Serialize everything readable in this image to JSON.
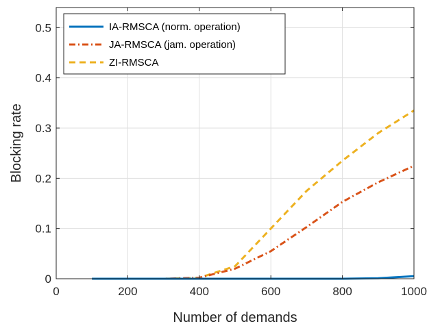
{
  "chart_data": {
    "type": "line",
    "title": "",
    "xlabel": "Number of demands",
    "ylabel": "Blocking rate",
    "xlim": [
      0,
      1000
    ],
    "ylim": [
      0,
      0.54
    ],
    "xticks": [
      0,
      200,
      400,
      600,
      800,
      1000
    ],
    "yticks": [
      0,
      0.1,
      0.2,
      0.3,
      0.4,
      0.5
    ],
    "xtick_labels": [
      "0",
      "200",
      "400",
      "600",
      "800",
      "1000"
    ],
    "ytick_labels": [
      "0",
      "0.1",
      "0.2",
      "0.3",
      "0.4",
      "0.5"
    ],
    "grid": true,
    "legend_position": "top-left",
    "x": [
      100,
      200,
      300,
      400,
      500,
      600,
      700,
      800,
      900,
      1000
    ],
    "series": [
      {
        "name": "IA-RMSCA (norm. operation)",
        "color": "#0072BD",
        "dash": "solid",
        "values": [
          0,
          0,
          0,
          0,
          0,
          0,
          0,
          0,
          0.001,
          0.005
        ]
      },
      {
        "name": "JA-RMSCA (jam. operation)",
        "color": "#D95319",
        "dash": "dashdot",
        "values": [
          0,
          0,
          0,
          0.002,
          0.02,
          0.055,
          0.103,
          0.153,
          0.192,
          0.225
        ]
      },
      {
        "name": "ZI-RMSCA",
        "color": "#EDB120",
        "dash": "dashed",
        "values": [
          0,
          0,
          0,
          0.002,
          0.025,
          0.1,
          0.175,
          0.235,
          0.29,
          0.335
        ]
      }
    ]
  }
}
